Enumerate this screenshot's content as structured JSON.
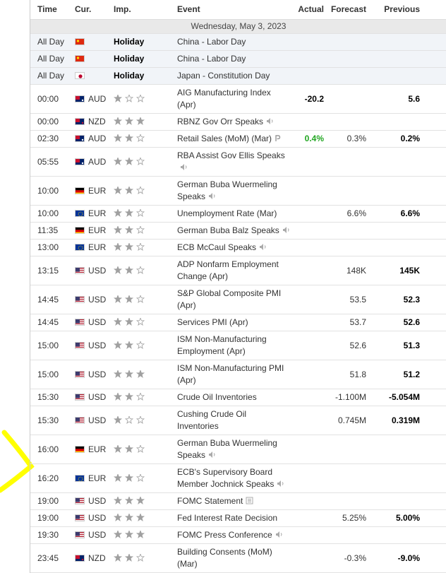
{
  "header": {
    "columns": [
      "Time",
      "Cur.",
      "Imp.",
      "Event",
      "Actual",
      "Forecast",
      "Previous"
    ]
  },
  "date": "Wednesday, May 3, 2023",
  "rows": [
    {
      "time": "All Day",
      "flag": "cn",
      "imp_label": "Holiday",
      "event": "China - Labor Day"
    },
    {
      "time": "All Day",
      "flag": "cn",
      "imp_label": "Holiday",
      "event": "China - Labor Day"
    },
    {
      "time": "All Day",
      "flag": "jp",
      "imp_label": "Holiday",
      "event": "Japan - Constitution Day"
    },
    {
      "time": "00:00",
      "flag": "au",
      "currency": "AUD",
      "importance": 1,
      "event": "AIG Manufacturing Index (Apr)",
      "actual": "-20.2",
      "previous": "5.6"
    },
    {
      "time": "00:00",
      "flag": "nz",
      "currency": "NZD",
      "importance": 3,
      "event": "RBNZ Gov Orr Speaks",
      "icon": "speaker"
    },
    {
      "time": "02:30",
      "flag": "au",
      "currency": "AUD",
      "importance": 2,
      "event": "Retail Sales (MoM) (Mar)",
      "icon": "p",
      "actual": "0.4%",
      "actual_color": "#22a622",
      "forecast": "0.3%",
      "previous": "0.2%"
    },
    {
      "time": "05:55",
      "flag": "au",
      "currency": "AUD",
      "importance": 2,
      "event": "RBA Assist Gov Ellis Speaks",
      "icon": "speaker"
    },
    {
      "time": "10:00",
      "flag": "de",
      "currency": "EUR",
      "importance": 2,
      "event": "German Buba Wuermeling Speaks",
      "icon": "speaker"
    },
    {
      "time": "10:00",
      "flag": "eu",
      "currency": "EUR",
      "importance": 2,
      "event": "Unemployment Rate (Mar)",
      "forecast": "6.6%",
      "previous": "6.6%"
    },
    {
      "time": "11:35",
      "flag": "de",
      "currency": "EUR",
      "importance": 2,
      "event": "German Buba Balz Speaks",
      "icon": "speaker"
    },
    {
      "time": "13:00",
      "flag": "eu",
      "currency": "EUR",
      "importance": 2,
      "event": "ECB McCaul Speaks",
      "icon": "speaker"
    },
    {
      "time": "13:15",
      "flag": "us",
      "currency": "USD",
      "importance": 2,
      "event": "ADP Nonfarm Employment Change (Apr)",
      "forecast": "148K",
      "previous": "145K"
    },
    {
      "time": "14:45",
      "flag": "us",
      "currency": "USD",
      "importance": 2,
      "event": "S&P Global Composite PMI (Apr)",
      "forecast": "53.5",
      "previous": "52.3"
    },
    {
      "time": "14:45",
      "flag": "us",
      "currency": "USD",
      "importance": 2,
      "event": "Services PMI (Apr)",
      "forecast": "53.7",
      "previous": "52.6"
    },
    {
      "time": "15:00",
      "flag": "us",
      "currency": "USD",
      "importance": 2,
      "event": "ISM Non-Manufacturing Employment (Apr)",
      "forecast": "52.6",
      "previous": "51.3"
    },
    {
      "time": "15:00",
      "flag": "us",
      "currency": "USD",
      "importance": 3,
      "event": "ISM Non-Manufacturing PMI (Apr)",
      "forecast": "51.8",
      "previous": "51.2"
    },
    {
      "time": "15:30",
      "flag": "us",
      "currency": "USD",
      "importance": 2,
      "event": "Crude Oil Inventories",
      "forecast": "-1.100M",
      "previous": "-5.054M"
    },
    {
      "time": "15:30",
      "flag": "us",
      "currency": "USD",
      "importance": 1,
      "event": "Cushing Crude Oil Inventories",
      "forecast": "0.745M",
      "previous": "0.319M"
    },
    {
      "time": "16:00",
      "flag": "de",
      "currency": "EUR",
      "importance": 2,
      "event": "German Buba Wuermeling Speaks",
      "icon": "speaker"
    },
    {
      "time": "16:20",
      "flag": "eu",
      "currency": "EUR",
      "importance": 2,
      "event": "ECB's Supervisory Board Member Jochnick Speaks",
      "icon": "speaker"
    },
    {
      "time": "19:00",
      "flag": "us",
      "currency": "USD",
      "importance": 3,
      "event": "FOMC Statement",
      "icon": "doc"
    },
    {
      "time": "19:00",
      "flag": "us",
      "currency": "USD",
      "importance": 3,
      "event": "Fed Interest Rate Decision",
      "forecast": "5.25%",
      "previous": "5.00%"
    },
    {
      "time": "19:30",
      "flag": "us",
      "currency": "USD",
      "importance": 3,
      "event": "FOMC Press Conference",
      "icon": "speaker"
    },
    {
      "time": "23:45",
      "flag": "nz",
      "currency": "NZD",
      "importance": 2,
      "event": "Building Consents (MoM) (Mar)",
      "forecast": "-0.3%",
      "previous": "-9.0%"
    }
  ]
}
